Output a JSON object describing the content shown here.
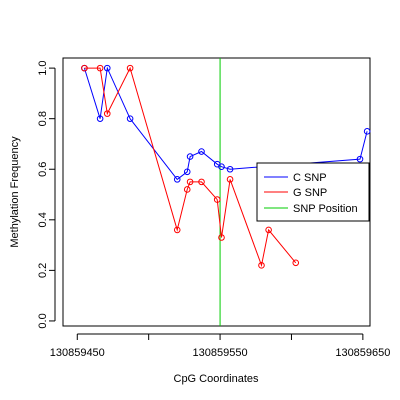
{
  "chart_data": {
    "type": "line",
    "xlabel": "CpG Coordinates",
    "ylabel": "Methylation Frequency",
    "xlim": [
      130859440,
      130859655
    ],
    "ylim": [
      -0.02,
      1.04
    ],
    "x_ticks": [
      130859450,
      130859500,
      130859550,
      130859600,
      130859650
    ],
    "x_tick_labels": [
      "130859450",
      "",
      "130859550",
      "",
      "130859650"
    ],
    "y_ticks": [
      0.0,
      0.2,
      0.4,
      0.6,
      0.8,
      1.0
    ],
    "y_tick_labels": [
      "0.0",
      "0.2",
      "0.4",
      "0.6",
      "0.8",
      "1.0"
    ],
    "grid": false,
    "legend_position": "right",
    "series": [
      {
        "name": "C SNP",
        "color": "#0000ff",
        "x": [
          130859455,
          130859466,
          130859471,
          130859487,
          130859520,
          130859527,
          130859529,
          130859537,
          130859548,
          130859551,
          130859557,
          130859648,
          130859653
        ],
        "y": [
          1.0,
          0.8,
          1.0,
          0.8,
          0.56,
          0.59,
          0.65,
          0.67,
          0.62,
          0.61,
          0.6,
          0.64,
          0.75
        ]
      },
      {
        "name": "G SNP",
        "color": "#ff0000",
        "x": [
          130859455,
          130859466,
          130859471,
          130859487,
          130859520,
          130859527,
          130859529,
          130859537,
          130859548,
          130859551,
          130859557,
          130859579,
          130859584,
          130859603
        ],
        "y": [
          1.0,
          1.0,
          0.82,
          1.0,
          0.36,
          0.52,
          0.55,
          0.55,
          0.48,
          0.33,
          0.56,
          0.22,
          0.36,
          0.23
        ]
      }
    ],
    "snp_position": {
      "name": "SNP Position",
      "color": "#00cc00",
      "x": 130859550
    }
  }
}
